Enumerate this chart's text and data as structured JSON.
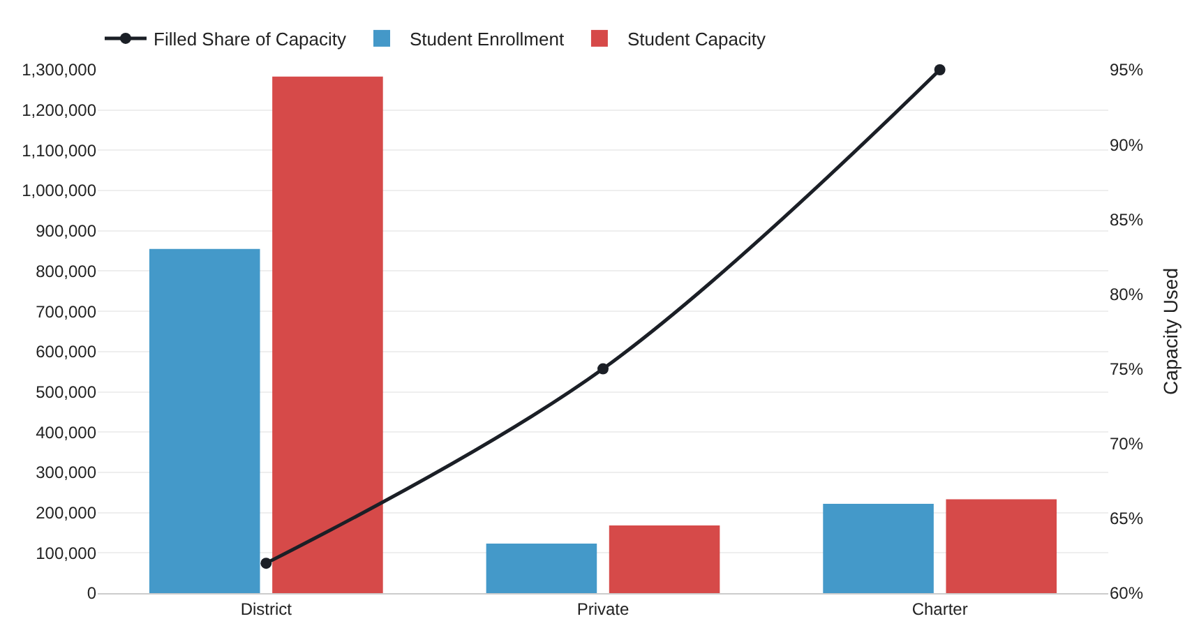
{
  "chart_data": {
    "type": "bar",
    "categories": [
      "District",
      "Private",
      "Charter"
    ],
    "series": [
      {
        "name": "Filled Share of Capacity",
        "type": "line",
        "axis": "y2",
        "color": "#1b1f26",
        "values": [
          62,
          75,
          95
        ]
      },
      {
        "name": "Student Enrollment",
        "color": "#3a93c6",
        "values": [
          855000,
          123000,
          222000
        ]
      },
      {
        "name": "Student Capacity",
        "color": "#d4403f",
        "values": [
          1283000,
          168000,
          233000
        ]
      }
    ],
    "y2label": "Capacity Used",
    "ylim": [
      0,
      1300000
    ],
    "yticks": [
      {
        "value": 0,
        "label": "0"
      },
      {
        "value": 100000,
        "label": "100,000"
      },
      {
        "value": 200000,
        "label": "200,000"
      },
      {
        "value": 300000,
        "label": "300,000"
      },
      {
        "value": 400000,
        "label": "400,000"
      },
      {
        "value": 500000,
        "label": "500,000"
      },
      {
        "value": 600000,
        "label": "600,000"
      },
      {
        "value": 700000,
        "label": "700,000"
      },
      {
        "value": 800000,
        "label": "800,000"
      },
      {
        "value": 900000,
        "label": "900,000"
      },
      {
        "value": 1000000,
        "label": "1,000,000"
      },
      {
        "value": 1100000,
        "label": "1,100,000"
      },
      {
        "value": 1200000,
        "label": "1,200,000"
      },
      {
        "value": 1300000,
        "label": "1,300,000"
      }
    ],
    "y2lim": [
      60,
      95
    ],
    "y2ticks": [
      {
        "value": 60,
        "label": "60%"
      },
      {
        "value": 65,
        "label": "65%"
      },
      {
        "value": 70,
        "label": "70%"
      },
      {
        "value": 75,
        "label": "75%"
      },
      {
        "value": 80,
        "label": "80%"
      },
      {
        "value": 85,
        "label": "85%"
      },
      {
        "value": 90,
        "label": "90%"
      },
      {
        "value": 95,
        "label": "95%"
      }
    ],
    "grid": "y",
    "legend": "top left",
    "marker": "circle",
    "line_style": "solid"
  }
}
